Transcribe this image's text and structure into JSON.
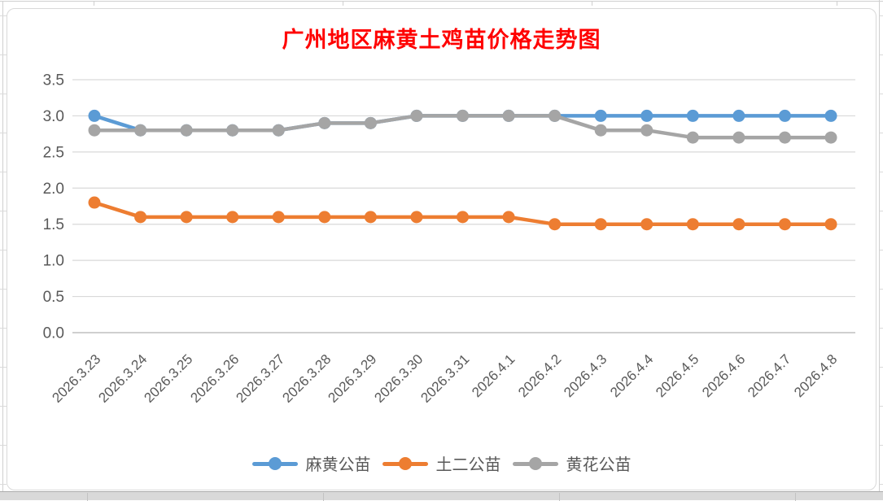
{
  "chart_data": {
    "type": "line",
    "title": "广州地区麻黄土鸡苗价格走势图",
    "title_color": "#FF0000",
    "categories": [
      "2026.3.23",
      "2026.3.24",
      "2026.3.25",
      "2026.3.26",
      "2026.3.27",
      "2026.3.28",
      "2026.3.29",
      "2026.3.30",
      "2026.3.31",
      "2026.4.1",
      "2026.4.2",
      "2026.4.3",
      "2026.4.4",
      "2026.4.5",
      "2026.4.6",
      "2026.4.7",
      "2026.4.8"
    ],
    "series": [
      {
        "name": "麻黄公苗",
        "color": "#5B9BD5",
        "values": [
          3.0,
          2.8,
          2.8,
          2.8,
          2.8,
          2.9,
          2.9,
          3.0,
          3.0,
          3.0,
          3.0,
          3.0,
          3.0,
          3.0,
          3.0,
          3.0,
          3.0
        ]
      },
      {
        "name": "土二公苗",
        "color": "#ED7D31",
        "values": [
          1.8,
          1.6,
          1.6,
          1.6,
          1.6,
          1.6,
          1.6,
          1.6,
          1.6,
          1.6,
          1.5,
          1.5,
          1.5,
          1.5,
          1.5,
          1.5,
          1.5
        ]
      },
      {
        "name": "黄花公苗",
        "color": "#A5A5A5",
        "values": [
          2.8,
          2.8,
          2.8,
          2.8,
          2.8,
          2.9,
          2.9,
          3.0,
          3.0,
          3.0,
          3.0,
          2.8,
          2.8,
          2.7,
          2.7,
          2.7,
          2.7
        ]
      }
    ],
    "ylim": [
      0,
      3.5
    ],
    "ytick_labels": [
      "3.5",
      "3.0",
      "2.5",
      "2.0",
      "1.5",
      "1.0",
      "0.5",
      "0.0"
    ],
    "ytick_values": [
      3.5,
      3.0,
      2.5,
      2.0,
      1.5,
      1.0,
      0.5,
      0.0
    ],
    "grid": true,
    "legend_position": "bottom",
    "axis_label_color": "#595959",
    "gridline_color": "#D9D9D9",
    "axis_line_color": "#BFBFBF"
  }
}
